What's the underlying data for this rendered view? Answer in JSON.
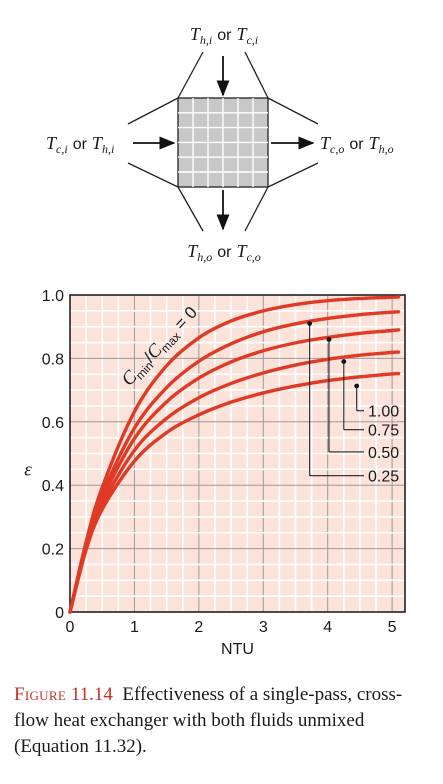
{
  "schematic": {
    "top_label": {
      "a": "T",
      "a_sub": "h,i",
      "or": "or",
      "b": "T",
      "b_sub": "c,i"
    },
    "left_label": {
      "a": "T",
      "a_sub": "c,i",
      "or": "or",
      "b": "T",
      "b_sub": "h,i"
    },
    "right_label": {
      "a": "T",
      "a_sub": "c,o",
      "or": "or",
      "b": "T",
      "b_sub": "h,o"
    },
    "bottom_label": {
      "a": "T",
      "a_sub": "h,o",
      "or": "or",
      "b": "T",
      "b_sub": "c,o"
    },
    "core_fill": "#c8c8c8"
  },
  "chart_data": {
    "type": "line",
    "title": "",
    "xlabel": "NTU",
    "ylabel": "ε",
    "xlim": [
      0,
      5.2
    ],
    "ylim": [
      0,
      1.0
    ],
    "x_ticks": [
      "0",
      "1",
      "2",
      "3",
      "4",
      "5"
    ],
    "y_ticks": [
      "0",
      "0.2",
      "0.4",
      "0.6",
      "0.8",
      "1.0"
    ],
    "grid": true,
    "background_color": "#fbe3da",
    "grid_color": "#ffffff",
    "line_color": "#e03a26",
    "curve_label": "C_min/C_max = 0",
    "curve_label_parts": {
      "c1": "C",
      "c1_sub": "min",
      "slash": "/",
      "c2": "C",
      "c2_sub": "max",
      "eq": " = 0"
    },
    "series": [
      {
        "name": "0",
        "x": [
          0,
          0.25,
          0.5,
          1,
          1.5,
          2,
          2.5,
          3,
          3.5,
          4,
          4.5,
          5,
          5.1
        ],
        "y": [
          0,
          0.221,
          0.393,
          0.632,
          0.777,
          0.865,
          0.918,
          0.95,
          0.97,
          0.982,
          0.989,
          0.993,
          0.994
        ]
      },
      {
        "name": "0.25",
        "x": [
          0,
          0.25,
          0.5,
          1,
          1.5,
          2,
          2.5,
          3,
          3.5,
          4,
          4.5,
          5,
          5.1
        ],
        "y": [
          0,
          0.213,
          0.371,
          0.58,
          0.708,
          0.791,
          0.846,
          0.884,
          0.909,
          0.926,
          0.938,
          0.946,
          0.947
        ]
      },
      {
        "name": "0.50",
        "x": [
          0,
          0.25,
          0.5,
          1,
          1.5,
          2,
          2.5,
          3,
          3.5,
          4,
          4.5,
          5,
          5.1
        ],
        "y": [
          0,
          0.207,
          0.355,
          0.547,
          0.663,
          0.738,
          0.789,
          0.824,
          0.849,
          0.866,
          0.879,
          0.888,
          0.89
        ]
      },
      {
        "name": "0.75",
        "x": [
          0,
          0.25,
          0.5,
          1,
          1.5,
          2,
          2.5,
          3,
          3.5,
          4,
          4.5,
          5,
          5.1
        ],
        "y": [
          0,
          0.201,
          0.338,
          0.51,
          0.611,
          0.676,
          0.721,
          0.754,
          0.779,
          0.797,
          0.81,
          0.819,
          0.82
        ]
      },
      {
        "name": "1.00",
        "x": [
          0,
          0.25,
          0.5,
          1,
          1.5,
          2,
          2.5,
          3,
          3.5,
          4,
          4.5,
          5,
          5.1
        ],
        "y": [
          0,
          0.196,
          0.324,
          0.476,
          0.566,
          0.622,
          0.662,
          0.691,
          0.713,
          0.73,
          0.742,
          0.751,
          0.752
        ]
      }
    ],
    "callouts": [
      {
        "label": "1.00",
        "x": 4.45,
        "y": 0.713
      },
      {
        "label": "0.75",
        "x": 4.25,
        "y": 0.79
      },
      {
        "label": "0.50",
        "x": 4.02,
        "y": 0.86
      },
      {
        "label": "0.25",
        "x": 3.72,
        "y": 0.91
      }
    ]
  },
  "caption": {
    "figure_label": "Figure",
    "figure_number": "11.14",
    "text": "Effectiveness of a single-pass, cross-flow heat exchanger with both fluids unmixed (Equation 11.32)."
  }
}
